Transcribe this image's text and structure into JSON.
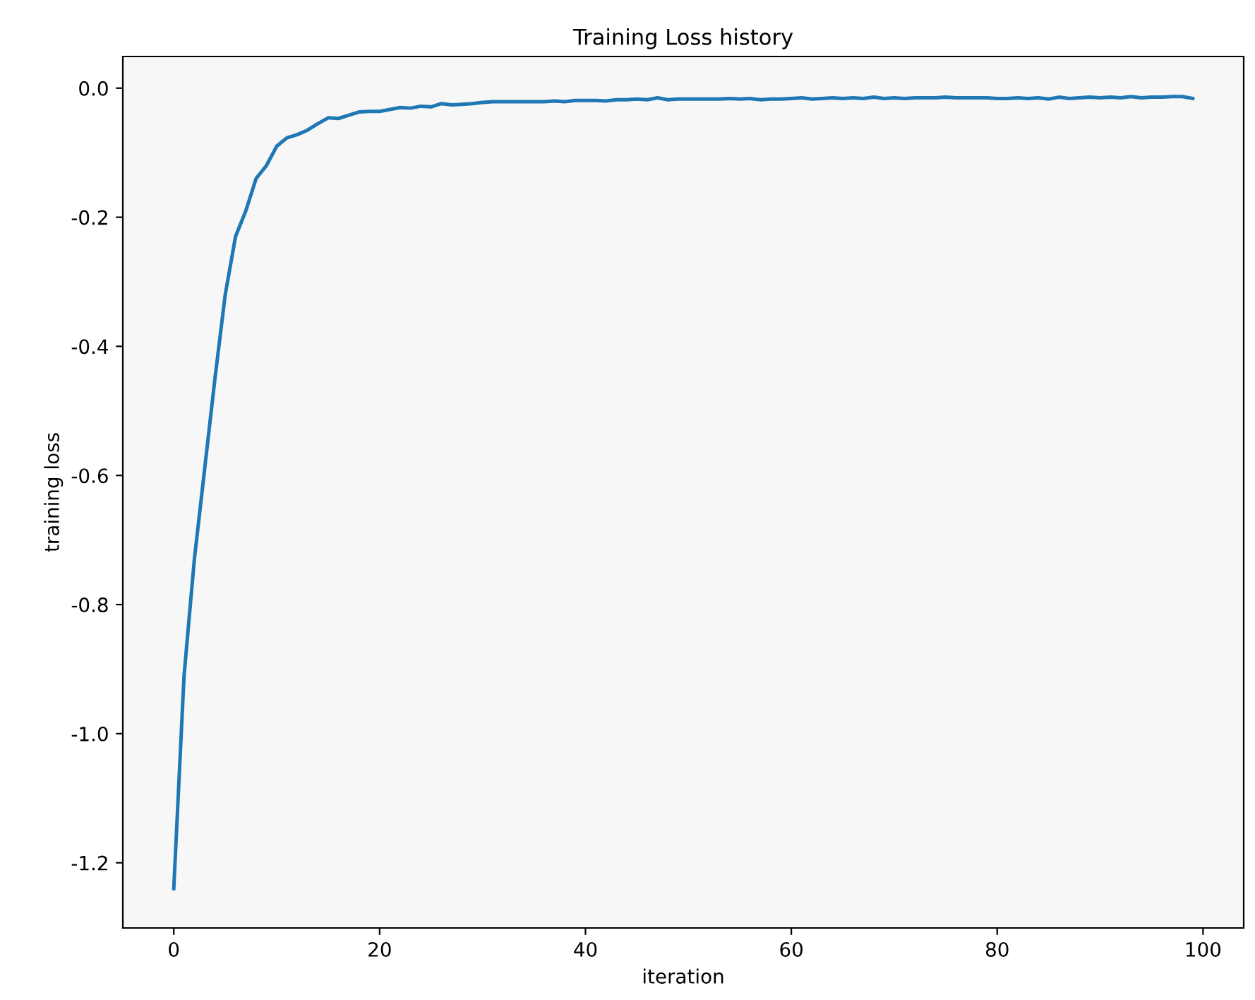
{
  "chart_data": {
    "type": "line",
    "title": "Training Loss history",
    "xlabel": "iteration",
    "ylabel": "training loss",
    "x": [
      0,
      1,
      2,
      3,
      4,
      5,
      6,
      7,
      8,
      9,
      10,
      11,
      12,
      13,
      14,
      15,
      16,
      17,
      18,
      19,
      20,
      21,
      22,
      23,
      24,
      25,
      26,
      27,
      28,
      29,
      30,
      31,
      32,
      33,
      34,
      35,
      36,
      37,
      38,
      39,
      40,
      41,
      42,
      43,
      44,
      45,
      46,
      47,
      48,
      49,
      50,
      51,
      52,
      53,
      54,
      55,
      56,
      57,
      58,
      59,
      60,
      61,
      62,
      63,
      64,
      65,
      66,
      67,
      68,
      69,
      70,
      71,
      72,
      73,
      74,
      75,
      76,
      77,
      78,
      79,
      80,
      81,
      82,
      83,
      84,
      85,
      86,
      87,
      88,
      89,
      90,
      91,
      92,
      93,
      94,
      95,
      96,
      97,
      98,
      99
    ],
    "series": [
      {
        "color": "#1f77b4",
        "values": [
          -1.24,
          -0.91,
          -0.73,
          -0.59,
          -0.45,
          -0.32,
          -0.23,
          -0.19,
          -0.14,
          -0.12,
          -0.09,
          -0.077,
          -0.072,
          -0.065,
          -0.055,
          -0.046,
          -0.047,
          -0.042,
          -0.037,
          -0.036,
          -0.036,
          -0.033,
          -0.03,
          -0.031,
          -0.028,
          -0.029,
          -0.024,
          -0.026,
          -0.025,
          -0.024,
          -0.022,
          -0.021,
          -0.021,
          -0.021,
          -0.021,
          -0.021,
          -0.021,
          -0.02,
          -0.021,
          -0.019,
          -0.019,
          -0.019,
          -0.02,
          -0.018,
          -0.018,
          -0.017,
          -0.018,
          -0.015,
          -0.018,
          -0.017,
          -0.017,
          -0.017,
          -0.017,
          -0.017,
          -0.016,
          -0.017,
          -0.016,
          -0.018,
          -0.017,
          -0.017,
          -0.016,
          -0.015,
          -0.017,
          -0.016,
          -0.015,
          -0.016,
          -0.015,
          -0.016,
          -0.014,
          -0.016,
          -0.015,
          -0.016,
          -0.015,
          -0.015,
          -0.015,
          -0.014,
          -0.015,
          -0.015,
          -0.015,
          -0.015,
          -0.016,
          -0.016,
          -0.015,
          -0.016,
          -0.015,
          -0.017,
          -0.014,
          -0.016,
          -0.015,
          -0.014,
          -0.015,
          -0.014,
          -0.015,
          -0.013,
          -0.015,
          -0.014,
          -0.014,
          -0.013,
          -0.013,
          -0.016
        ]
      }
    ],
    "xlim": [
      -4.95,
      103.95
    ],
    "ylim": [
      -1.301,
      0.049
    ],
    "xticks": [
      0,
      20,
      40,
      60,
      80,
      100
    ],
    "yticks": [
      {
        "value": -1.2,
        "label": "-1.2"
      },
      {
        "value": -1.0,
        "label": "-1.0"
      },
      {
        "value": -0.8,
        "label": "-0.8"
      },
      {
        "value": -0.6,
        "label": "-0.6"
      },
      {
        "value": -0.4,
        "label": "-0.4"
      },
      {
        "value": -0.2,
        "label": "-0.2"
      },
      {
        "value": 0,
        "label": "0.0"
      }
    ],
    "grid": false,
    "marker": "none",
    "line_style": "solid"
  }
}
